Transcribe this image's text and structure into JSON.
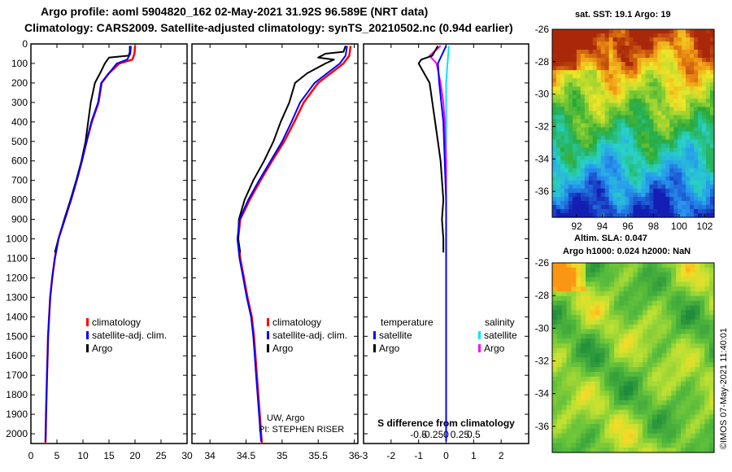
{
  "header": {
    "line1": "Argo profile: aoml 5904820_162 02-May-2021 31.92S 96.589E (NRT data)",
    "line2": "Climatology: CARS2009. Satellite-adjusted climatology: synTS_20210502.nc (0.94d earlier)"
  },
  "colors": {
    "climatology": "#ff0000",
    "satellite": "#0000ff",
    "argo": "#000000",
    "argo_salinity": "#ff00ff",
    "satellite_salinity": "#00e5ff"
  },
  "chart_data": [
    {
      "type": "line",
      "name": "temperature-profile",
      "xlim": [
        0,
        30
      ],
      "ylim": [
        2050,
        0
      ],
      "x_ticks": [
        "0",
        "5",
        "10",
        "15",
        "20",
        "25",
        "30"
      ],
      "y_ticks": [
        "0",
        "100",
        "200",
        "300",
        "400",
        "500",
        "600",
        "700",
        "800",
        "900",
        "1000",
        "1100",
        "1200",
        "1300",
        "1400",
        "1500",
        "1600",
        "1700",
        "1800",
        "1900",
        "2000"
      ],
      "legend": [
        "climatology",
        "satellite-adj. clim.",
        "Argo"
      ],
      "series": [
        {
          "name": "climatology",
          "points": [
            [
              20,
              10
            ],
            [
              19.9,
              50
            ],
            [
              19.5,
              80
            ],
            [
              17,
              100
            ],
            [
              15,
              150
            ],
            [
              13.6,
              200
            ],
            [
              13,
              300
            ],
            [
              11.7,
              400
            ],
            [
              10.7,
              500
            ],
            [
              9.8,
              600
            ],
            [
              8.8,
              700
            ],
            [
              7.7,
              800
            ],
            [
              6.5,
              900
            ],
            [
              5.3,
              1000
            ],
            [
              4.6,
              1100
            ],
            [
              4.1,
              1200
            ],
            [
              3.7,
              1300
            ],
            [
              3.5,
              1400
            ],
            [
              3.3,
              1500
            ],
            [
              3.2,
              1600
            ],
            [
              3.1,
              1700
            ],
            [
              3.0,
              1800
            ],
            [
              2.9,
              1900
            ],
            [
              2.85,
              2000
            ],
            [
              2.8,
              2050
            ]
          ]
        },
        {
          "name": "satellite-adj. clim.",
          "points": [
            [
              19.2,
              10
            ],
            [
              19.1,
              50
            ],
            [
              18.5,
              80
            ],
            [
              16.5,
              100
            ],
            [
              15,
              150
            ],
            [
              13.5,
              200
            ],
            [
              12.9,
              300
            ],
            [
              11.6,
              400
            ],
            [
              10.7,
              500
            ],
            [
              9.8,
              600
            ],
            [
              8.8,
              700
            ],
            [
              7.7,
              800
            ],
            [
              6.5,
              900
            ],
            [
              5.3,
              1000
            ],
            [
              4.6,
              1100
            ],
            [
              4.1,
              1200
            ],
            [
              3.7,
              1300
            ],
            [
              3.5,
              1400
            ],
            [
              3.3,
              1500
            ],
            [
              3.2,
              1600
            ],
            [
              3.1,
              1700
            ],
            [
              3.0,
              1800
            ],
            [
              2.9,
              1900
            ],
            [
              2.85,
              2000
            ],
            [
              2.8,
              2040
            ]
          ]
        },
        {
          "name": "Argo",
          "points": [
            [
              19,
              10
            ],
            [
              19,
              40
            ],
            [
              18.8,
              60
            ],
            [
              15,
              70
            ],
            [
              14.2,
              100
            ],
            [
              13.3,
              150
            ],
            [
              12.3,
              200
            ],
            [
              11.5,
              300
            ],
            [
              11,
              400
            ],
            [
              10.5,
              500
            ],
            [
              9.7,
              600
            ],
            [
              8.7,
              700
            ],
            [
              7.6,
              800
            ],
            [
              6.4,
              900
            ],
            [
              5.3,
              1000
            ],
            [
              4.6,
              1070
            ]
          ]
        }
      ]
    },
    {
      "type": "line",
      "name": "salinity-profile",
      "xlim": [
        33.75,
        36.05
      ],
      "ylim": [
        2050,
        0
      ],
      "x_ticks": [
        "34",
        "34.5",
        "35",
        "35.5",
        "36"
      ],
      "legend": [
        "climatology",
        "satellite-adj. clim.",
        "Argo"
      ],
      "annotations": [
        "UW, Argo",
        "PI: STEPHEN RISER"
      ],
      "series": [
        {
          "name": "climatology",
          "points": [
            [
              35.95,
              10
            ],
            [
              35.93,
              60
            ],
            [
              35.85,
              100
            ],
            [
              35.5,
              200
            ],
            [
              35.3,
              300
            ],
            [
              35.17,
              400
            ],
            [
              35.03,
              500
            ],
            [
              34.86,
              600
            ],
            [
              34.7,
              700
            ],
            [
              34.55,
              800
            ],
            [
              34.42,
              900
            ],
            [
              34.39,
              1000
            ],
            [
              34.42,
              1100
            ],
            [
              34.47,
              1200
            ],
            [
              34.52,
              1300
            ],
            [
              34.58,
              1400
            ],
            [
              34.61,
              1500
            ],
            [
              34.63,
              1600
            ],
            [
              34.65,
              1700
            ],
            [
              34.67,
              1800
            ],
            [
              34.69,
              1900
            ],
            [
              34.71,
              2000
            ],
            [
              34.72,
              2050
            ]
          ]
        },
        {
          "name": "satellite-adj. clim.",
          "points": [
            [
              35.9,
              10
            ],
            [
              35.88,
              60
            ],
            [
              35.8,
              100
            ],
            [
              35.45,
              200
            ],
            [
              35.25,
              300
            ],
            [
              35.13,
              400
            ],
            [
              35.0,
              500
            ],
            [
              34.84,
              600
            ],
            [
              34.68,
              700
            ],
            [
              34.53,
              800
            ],
            [
              34.41,
              900
            ],
            [
              34.38,
              1000
            ],
            [
              34.41,
              1100
            ],
            [
              34.46,
              1200
            ],
            [
              34.51,
              1300
            ],
            [
              34.57,
              1400
            ],
            [
              34.6,
              1500
            ],
            [
              34.62,
              1600
            ],
            [
              34.64,
              1700
            ],
            [
              34.66,
              1800
            ],
            [
              34.68,
              1900
            ],
            [
              34.7,
              2000
            ],
            [
              34.71,
              2040
            ]
          ]
        },
        {
          "name": "Argo",
          "points": [
            [
              35.88,
              10
            ],
            [
              35.85,
              40
            ],
            [
              35.6,
              50
            ],
            [
              35.5,
              70
            ],
            [
              35.72,
              80
            ],
            [
              35.6,
              100
            ],
            [
              35.35,
              150
            ],
            [
              35.18,
              200
            ],
            [
              35.1,
              300
            ],
            [
              34.98,
              400
            ],
            [
              34.88,
              500
            ],
            [
              34.75,
              600
            ],
            [
              34.6,
              700
            ],
            [
              34.48,
              800
            ],
            [
              34.4,
              900
            ],
            [
              34.39,
              1000
            ],
            [
              34.42,
              1070
            ]
          ]
        }
      ]
    },
    {
      "type": "line",
      "name": "difference-from-climatology",
      "xlim": [
        -3,
        3
      ],
      "ylim": [
        2050,
        0
      ],
      "x_ticks": [
        "-3",
        "-2",
        "-1",
        "0",
        "1",
        "2"
      ],
      "top_ticks": [
        "-0.5",
        "-0.25",
        "0",
        "0.25",
        "0.5"
      ],
      "xlabel": "S difference from climatology",
      "legend_headers": [
        "temperature",
        "salinity"
      ],
      "legend": [
        "satellite",
        "Argo",
        "satellite",
        "Argo"
      ],
      "series": [
        {
          "name": "temperature satellite",
          "points": [
            [
              0,
              10
            ],
            [
              -0.3,
              100
            ],
            [
              -0.25,
              200
            ],
            [
              -0.1,
              400
            ],
            [
              -0.05,
              600
            ],
            [
              0,
              800
            ],
            [
              0,
              1000
            ],
            [
              0,
              2040
            ]
          ]
        },
        {
          "name": "temperature Argo",
          "points": [
            [
              -0.3,
              10
            ],
            [
              -0.5,
              60
            ],
            [
              -0.9,
              80
            ],
            [
              -1.0,
              100
            ],
            [
              -0.6,
              200
            ],
            [
              -0.5,
              300
            ],
            [
              -0.4,
              400
            ],
            [
              -0.3,
              500
            ],
            [
              -0.2,
              600
            ],
            [
              -0.15,
              700
            ],
            [
              -0.1,
              800
            ],
            [
              -0.15,
              900
            ],
            [
              -0.1,
              1000
            ],
            [
              -0.1,
              1070
            ]
          ]
        },
        {
          "name": "salinity satellite",
          "points": [
            [
              0.1,
              10
            ],
            [
              0.05,
              100
            ],
            [
              0,
              200
            ],
            [
              0,
              600
            ],
            [
              0,
              1000
            ],
            [
              0,
              2040
            ]
          ]
        },
        {
          "name": "salinity Argo",
          "points": [
            [
              -0.2,
              10
            ],
            [
              -0.6,
              60
            ],
            [
              -0.35,
              100
            ],
            [
              -0.2,
              200
            ],
            [
              -0.1,
              300
            ],
            [
              -0.05,
              400
            ],
            [
              0,
              600
            ],
            [
              0,
              1000
            ],
            [
              0,
              2040
            ]
          ]
        }
      ]
    }
  ],
  "maps": {
    "sst": {
      "title": "sat. SST: 19.1  Argo: 19",
      "y_ticks": [
        "-26",
        "-28",
        "-30",
        "-32",
        "-34",
        "-36"
      ],
      "x_ticks": [
        "92",
        "94",
        "96",
        "98",
        "100",
        "102"
      ],
      "marker": {
        "lat": -31.92,
        "lon": 96.589
      }
    },
    "sla": {
      "title1": "Altim. SLA: 0.047",
      "title2": "Argo h1000: 0.024 h2000: NaN",
      "y_ticks": [
        "-26",
        "-28",
        "-30",
        "-32",
        "-34",
        "-36"
      ]
    }
  },
  "footer_stamp": "©IMOS 07-May-2021 11:40:01"
}
